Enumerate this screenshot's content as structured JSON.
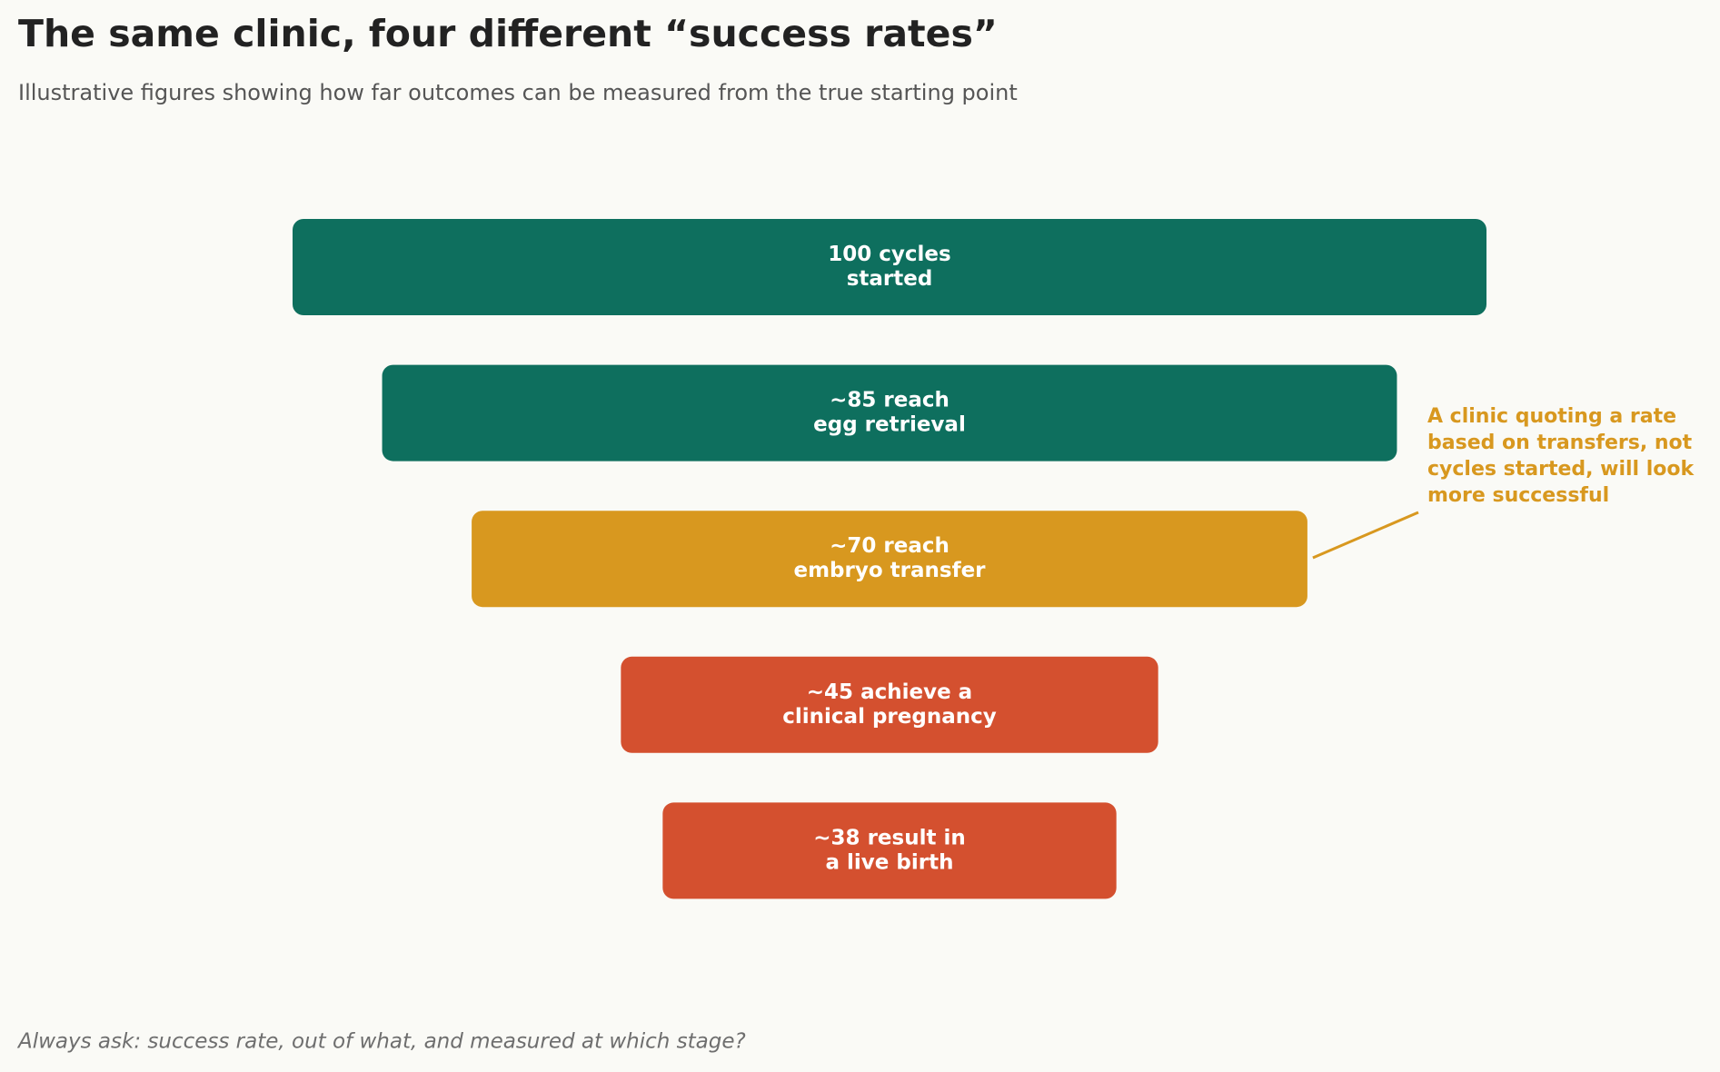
{
  "chart_data": {
    "type": "funnel",
    "title": "The same clinic, four different “success rates”",
    "subtitle": "Illustrative figures showing how far outcomes can be measured from the true starting point",
    "categories": [
      [
        "100 cycles",
        "started"
      ],
      [
        "~85 reach",
        "egg retrieval"
      ],
      [
        "~70 reach",
        "embryo transfer"
      ],
      [
        "~45 achieve a",
        "clinical pregnancy"
      ],
      [
        "~38 result in",
        "a live birth"
      ]
    ],
    "values": [
      100,
      85,
      70,
      45,
      38
    ],
    "colors": [
      "#0e6f5e",
      "#0e6f5e",
      "#d8981f",
      "#d4502f",
      "#d4502f"
    ],
    "annotation": [
      "A clinic quoting a rate",
      "based on transfers, not",
      "cycles started, will look",
      "more successful"
    ],
    "annotation_color": "#d8981f",
    "footnote": "Always ask: success rate, out of what, and measured at which stage?"
  }
}
